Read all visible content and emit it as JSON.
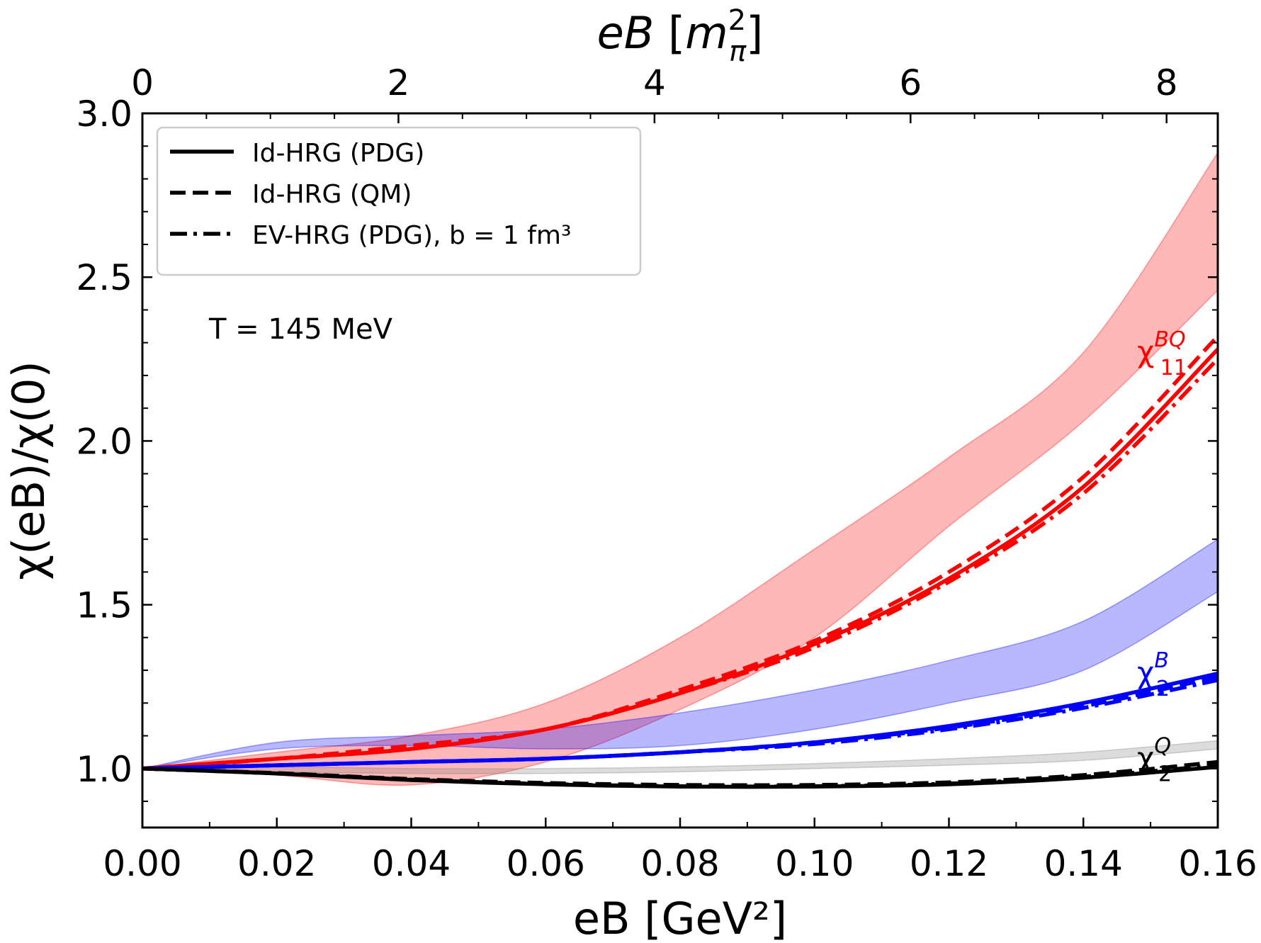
{
  "chart_data": {
    "type": "line",
    "xlabel": "eB [GeV²]",
    "xlabel_top": "eB [m_π²]",
    "ylabel": "χ(eB)/χ(0)",
    "xlim": [
      0,
      0.16
    ],
    "ylim": [
      0.82,
      3.0
    ],
    "xlim_top": [
      0,
      8.4
    ],
    "xticks": [
      0.0,
      0.02,
      0.04,
      0.06,
      0.08,
      0.1,
      0.12,
      0.14,
      0.16
    ],
    "xtick_labels": [
      "0.00",
      "0.02",
      "0.04",
      "0.06",
      "0.08",
      "0.10",
      "0.12",
      "0.14",
      "0.16"
    ],
    "xticks_top": [
      0,
      2,
      4,
      6,
      8
    ],
    "xtick_labels_top": [
      "0",
      "2",
      "4",
      "6",
      "8"
    ],
    "yticks": [
      1.0,
      1.5,
      2.0,
      2.5,
      3.0
    ],
    "ytick_labels": [
      "1.0",
      "1.5",
      "2.0",
      "2.5",
      "3.0"
    ],
    "annotation": "T = 145 MeV",
    "legend_position": "top-left",
    "legend": [
      {
        "label": "Id-HRG (PDG)",
        "style": "solid"
      },
      {
        "label": "Id-HRG (QM)",
        "style": "dashed"
      },
      {
        "label": "EV-HRG (PDG), b = 1 fm³",
        "style": "dashdot"
      }
    ],
    "x": [
      0.0,
      0.02,
      0.04,
      0.06,
      0.08,
      0.1,
      0.12,
      0.14,
      0.16
    ],
    "series": [
      {
        "name": "χ11BQ",
        "quantity": "chi11BQ",
        "model": "Id-HRG (PDG)",
        "style": "solid",
        "color": "#ff0000",
        "values": [
          1.0,
          1.03,
          1.06,
          1.12,
          1.23,
          1.38,
          1.58,
          1.86,
          2.28
        ]
      },
      {
        "name": "χ11BQ",
        "quantity": "chi11BQ",
        "model": "Id-HRG (QM)",
        "style": "dashed",
        "color": "#ff0000",
        "values": [
          1.0,
          1.03,
          1.07,
          1.12,
          1.24,
          1.39,
          1.6,
          1.89,
          2.32
        ]
      },
      {
        "name": "χ11BQ",
        "quantity": "chi11BQ",
        "model": "EV-HRG (PDG), b = 1 fm³",
        "style": "dashdot",
        "color": "#ff0000",
        "values": [
          1.0,
          1.03,
          1.06,
          1.12,
          1.23,
          1.37,
          1.57,
          1.84,
          2.25
        ]
      },
      {
        "name": "χ2B",
        "quantity": "chi2B",
        "model": "Id-HRG (PDG)",
        "style": "solid",
        "color": "#0000ff",
        "values": [
          1.0,
          1.01,
          1.02,
          1.03,
          1.05,
          1.08,
          1.13,
          1.2,
          1.29
        ]
      },
      {
        "name": "χ2B",
        "quantity": "chi2B",
        "model": "Id-HRG (QM)",
        "style": "dashed",
        "color": "#0000ff",
        "values": [
          1.0,
          1.01,
          1.02,
          1.03,
          1.05,
          1.08,
          1.125,
          1.19,
          1.28
        ]
      },
      {
        "name": "χ2B",
        "quantity": "chi2B",
        "model": "EV-HRG (PDG), b = 1 fm³",
        "style": "dashdot",
        "color": "#0000ff",
        "values": [
          1.0,
          1.01,
          1.02,
          1.03,
          1.05,
          1.075,
          1.12,
          1.185,
          1.27
        ]
      },
      {
        "name": "χ2Q",
        "quantity": "chi2Q",
        "model": "Id-HRG (PDG)",
        "style": "solid",
        "color": "#000000",
        "values": [
          1.0,
          0.985,
          0.965,
          0.952,
          0.945,
          0.945,
          0.952,
          0.972,
          1.005
        ]
      },
      {
        "name": "χ2Q",
        "quantity": "chi2Q",
        "model": "Id-HRG (QM)",
        "style": "dashed",
        "color": "#000000",
        "values": [
          1.0,
          0.986,
          0.968,
          0.956,
          0.95,
          0.95,
          0.958,
          0.98,
          1.02
        ]
      },
      {
        "name": "χ2Q",
        "quantity": "chi2Q",
        "model": "EV-HRG (PDG), b = 1 fm³",
        "style": "dashdot",
        "color": "#000000",
        "values": [
          1.0,
          0.985,
          0.966,
          0.953,
          0.946,
          0.946,
          0.954,
          0.975,
          1.01
        ]
      }
    ],
    "bands": [
      {
        "quantity": "chi11BQ",
        "color": "#ff0000",
        "upper": [
          1.0,
          1.05,
          1.1,
          1.2,
          1.4,
          1.67,
          1.95,
          2.27,
          2.88
        ],
        "lower": [
          1.0,
          0.98,
          0.95,
          1.02,
          1.18,
          1.4,
          1.74,
          2.06,
          2.46
        ]
      },
      {
        "quantity": "chi2B",
        "color": "#0000ff",
        "upper": [
          1.0,
          1.08,
          1.1,
          1.12,
          1.17,
          1.24,
          1.33,
          1.45,
          1.7
        ],
        "lower": [
          1.0,
          1.06,
          1.07,
          1.06,
          1.07,
          1.12,
          1.2,
          1.3,
          1.54
        ]
      },
      {
        "quantity": "chi2Q",
        "color": "#808080",
        "upper": [
          1.0,
          1.005,
          1.0,
          1.0,
          1.005,
          1.015,
          1.03,
          1.05,
          1.085
        ],
        "lower": [
          1.0,
          0.99,
          0.985,
          0.985,
          0.99,
          1.0,
          1.01,
          1.025,
          1.06
        ]
      }
    ],
    "series_labels": [
      {
        "base": "χ",
        "sub": "11",
        "sup": "BQ",
        "color": "#ff0000"
      },
      {
        "base": "χ",
        "sub": "2",
        "sup": "B",
        "color": "#0000ff"
      },
      {
        "base": "χ",
        "sub": "2",
        "sup": "Q",
        "color": "#000000"
      }
    ]
  }
}
